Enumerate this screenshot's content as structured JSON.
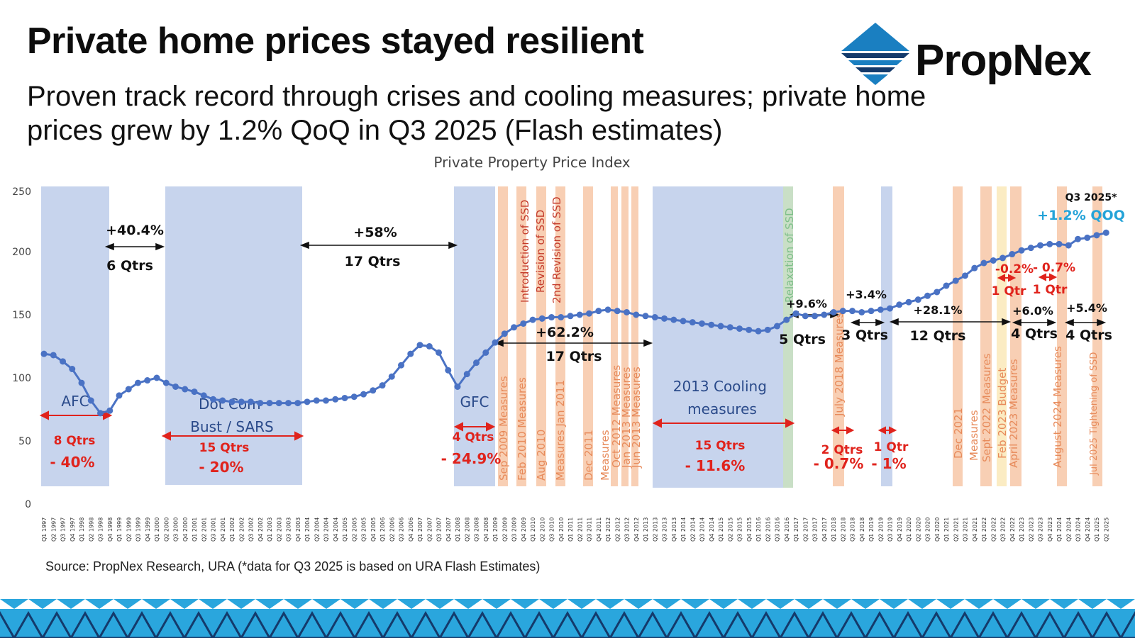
{
  "slide": {
    "title": "Private home prices stayed resilient",
    "subtitle": "Proven track record through crises and cooling measures; private home prices grew by 1.2% QoQ in Q3 2025 (Flash estimates)",
    "brand": "PropNex",
    "source": "Source: PropNex Research, URA (*data for Q3 2025 is based on URA Flash Estimates)",
    "colors": {
      "brand_blue": "#1a7fc1",
      "navy": "#143a6b",
      "footer_light": "#2aa6dd",
      "line": "#4a72c4"
    }
  },
  "chart_data": {
    "type": "line",
    "title": "Private Property Price Index",
    "ylim": [
      0,
      250
    ],
    "yticks": [
      0,
      50,
      100,
      150,
      200,
      250
    ],
    "x_start": "Q1 1997",
    "series": [
      {
        "values": [
          119,
          118,
          113,
          107,
          96,
          82,
          72,
          74,
          86,
          91,
          96,
          98,
          100,
          96,
          93,
          91,
          89,
          86,
          83,
          82,
          81,
          81,
          81,
          80,
          80,
          80,
          80,
          80,
          81,
          82,
          82,
          83,
          84,
          85,
          87,
          90,
          94,
          101,
          110,
          119,
          126,
          125,
          120,
          106,
          93,
          103,
          112,
          120,
          128,
          135,
          140,
          143,
          146,
          147,
          148,
          148,
          149,
          150,
          151,
          153,
          154,
          153,
          152,
          150,
          149,
          148,
          147,
          146,
          145,
          144,
          143,
          142,
          141,
          140,
          139,
          138,
          137,
          138,
          141,
          146,
          151,
          149,
          149,
          150,
          152,
          153,
          153,
          152,
          153,
          154,
          155,
          158,
          160,
          162,
          165,
          168,
          173,
          177,
          181,
          187,
          191,
          193,
          195,
          198,
          201,
          203,
          205,
          206,
          206,
          205,
          210,
          211,
          213,
          215
        ]
      }
    ],
    "shaded_periods": [
      {
        "label": "AFC",
        "change": "- 40%",
        "duration": "8 Qtrs"
      },
      {
        "label": "Dot Com Bust / SARS",
        "change": "- 20%",
        "duration": "15 Qtrs"
      },
      {
        "label": "GFC",
        "change": "- 24.9%",
        "duration": "4 Qtrs"
      },
      {
        "label": "2013 Cooling measures",
        "change": "- 11.6%",
        "duration": "15 Qtrs"
      },
      {
        "label": "",
        "change": "- 0.7%",
        "duration": "2 Qtrs"
      },
      {
        "label": "",
        "change": "- 1%",
        "duration": "1 Qtr"
      },
      {
        "label": "",
        "change": "-0.2%",
        "duration": "1 Qtr"
      },
      {
        "label": "",
        "change": "- 0.7%",
        "duration": "1 Qtr"
      }
    ],
    "growth_periods": [
      {
        "change": "+40.4%",
        "duration": "6 Qtrs"
      },
      {
        "change": "+58%",
        "duration": "17 Qtrs"
      },
      {
        "change": "+62.2%",
        "duration": "17 Qtrs"
      },
      {
        "change": "+9.6%",
        "duration": "5 Qtrs"
      },
      {
        "change": "+3.4%",
        "duration": "3 Qtrs"
      },
      {
        "change": "+28.1%",
        "duration": "12 Qtrs"
      },
      {
        "change": "+6.0%",
        "duration": "4 Qtrs"
      },
      {
        "change": "+5.4%",
        "duration": "4 Qtrs"
      }
    ],
    "measures": [
      "Sep 2009 Measures",
      "Introduction of SSD",
      "Feb 2010 Measures",
      "Revision of SSD",
      "Aug 2010",
      "2nd Revision of SSD",
      "Measures Jan 2011",
      "Dec 2011",
      "Measures",
      "Oct 2012 Measures",
      "Jan 2013 Measures",
      "Jun 2013 Measures",
      "Relaxation of SSD",
      "July 2018 Measures",
      "Dec 2021",
      "Measures",
      "Sept 2022 Measures",
      "Feb 2023 Budget",
      "April 2023 Measures",
      "August 2024 Measures",
      "Jul 2025 Tightening of SSD"
    ],
    "latest_label": "Q3 2025*",
    "latest_change": "+1.2% QOQ"
  }
}
